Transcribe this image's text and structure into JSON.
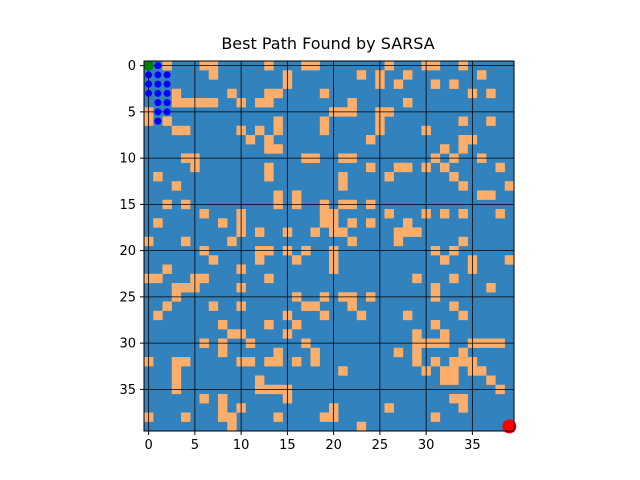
{
  "chart_data": {
    "type": "heatmap",
    "title": "Best Path Found by SARSA",
    "grid_size": 40,
    "xlim": [
      -0.5,
      39.5
    ],
    "ylim": [
      39.5,
      -0.5
    ],
    "xticks": [
      0,
      5,
      10,
      15,
      20,
      25,
      30,
      35
    ],
    "yticks": [
      0,
      5,
      10,
      15,
      20,
      25,
      30,
      35
    ],
    "xtick_labels": [
      "0",
      "5",
      "10",
      "15",
      "20",
      "25",
      "30",
      "35"
    ],
    "ytick_labels": [
      "0",
      "5",
      "10",
      "15",
      "20",
      "25",
      "30",
      "35"
    ],
    "grid": true,
    "grid_spacing": 5,
    "colors": {
      "free": "#3282bd",
      "obstacle": "#fdae6b",
      "path": "#0000ff",
      "start": "#008000",
      "goal": "#ff0000",
      "grid": "#000000"
    },
    "obstacles": [
      [
        0,
        2
      ],
      [
        0,
        6
      ],
      [
        0,
        7
      ],
      [
        0,
        13
      ],
      [
        0,
        17
      ],
      [
        0,
        18
      ],
      [
        0,
        26
      ],
      [
        0,
        30
      ],
      [
        0,
        31
      ],
      [
        0,
        34
      ],
      [
        1,
        7
      ],
      [
        1,
        15
      ],
      [
        1,
        23
      ],
      [
        1,
        25
      ],
      [
        1,
        28
      ],
      [
        1,
        36
      ],
      [
        2,
        15
      ],
      [
        2,
        25
      ],
      [
        2,
        27
      ],
      [
        2,
        31
      ],
      [
        2,
        33
      ],
      [
        3,
        3
      ],
      [
        3,
        9
      ],
      [
        3,
        13
      ],
      [
        3,
        14
      ],
      [
        3,
        19
      ],
      [
        3,
        35
      ],
      [
        3,
        37
      ],
      [
        4,
        3
      ],
      [
        4,
        4
      ],
      [
        4,
        5
      ],
      [
        4,
        6
      ],
      [
        4,
        7
      ],
      [
        4,
        10
      ],
      [
        4,
        12
      ],
      [
        4,
        13
      ],
      [
        4,
        22
      ],
      [
        4,
        28
      ],
      [
        5,
        0
      ],
      [
        5,
        20
      ],
      [
        5,
        21
      ],
      [
        5,
        22
      ],
      [
        5,
        25
      ],
      [
        5,
        26
      ],
      [
        6,
        0
      ],
      [
        6,
        2
      ],
      [
        6,
        14
      ],
      [
        6,
        19
      ],
      [
        6,
        25
      ],
      [
        6,
        34
      ],
      [
        6,
        37
      ],
      [
        7,
        3
      ],
      [
        7,
        4
      ],
      [
        7,
        10
      ],
      [
        7,
        12
      ],
      [
        7,
        14
      ],
      [
        7,
        19
      ],
      [
        7,
        25
      ],
      [
        7,
        30
      ],
      [
        8,
        11
      ],
      [
        8,
        13
      ],
      [
        8,
        24
      ],
      [
        8,
        34
      ],
      [
        8,
        35
      ],
      [
        9,
        13
      ],
      [
        9,
        14
      ],
      [
        9,
        32
      ],
      [
        9,
        34
      ],
      [
        10,
        4
      ],
      [
        10,
        5
      ],
      [
        10,
        17
      ],
      [
        10,
        18
      ],
      [
        10,
        21
      ],
      [
        10,
        22
      ],
      [
        10,
        31
      ],
      [
        10,
        33
      ],
      [
        10,
        36
      ],
      [
        11,
        5
      ],
      [
        11,
        13
      ],
      [
        11,
        24
      ],
      [
        11,
        27
      ],
      [
        11,
        28
      ],
      [
        11,
        30
      ],
      [
        11,
        32
      ],
      [
        11,
        38
      ],
      [
        12,
        1
      ],
      [
        12,
        13
      ],
      [
        12,
        21
      ],
      [
        12,
        26
      ],
      [
        12,
        33
      ],
      [
        13,
        3
      ],
      [
        13,
        21
      ],
      [
        13,
        34
      ],
      [
        13,
        39
      ],
      [
        14,
        14
      ],
      [
        14,
        16
      ],
      [
        14,
        36
      ],
      [
        14,
        37
      ],
      [
        15,
        2
      ],
      [
        15,
        4
      ],
      [
        15,
        14
      ],
      [
        15,
        16
      ],
      [
        15,
        19
      ],
      [
        15,
        21
      ],
      [
        15,
        22
      ],
      [
        15,
        24
      ],
      [
        16,
        6
      ],
      [
        16,
        10
      ],
      [
        16,
        19
      ],
      [
        16,
        20
      ],
      [
        16,
        26
      ],
      [
        16,
        30
      ],
      [
        16,
        32
      ],
      [
        16,
        34
      ],
      [
        16,
        38
      ],
      [
        17,
        1
      ],
      [
        17,
        8
      ],
      [
        17,
        10
      ],
      [
        17,
        19
      ],
      [
        17,
        20
      ],
      [
        17,
        22
      ],
      [
        17,
        24
      ],
      [
        17,
        28
      ],
      [
        18,
        10
      ],
      [
        18,
        12
      ],
      [
        18,
        15
      ],
      [
        18,
        18
      ],
      [
        18,
        20
      ],
      [
        18,
        21
      ],
      [
        18,
        27
      ],
      [
        18,
        28
      ],
      [
        18,
        29
      ],
      [
        19,
        0
      ],
      [
        19,
        4
      ],
      [
        19,
        9
      ],
      [
        19,
        22
      ],
      [
        19,
        27
      ],
      [
        19,
        34
      ],
      [
        20,
        6
      ],
      [
        20,
        12
      ],
      [
        20,
        13
      ],
      [
        20,
        15
      ],
      [
        20,
        17
      ],
      [
        20,
        20
      ],
      [
        20,
        31
      ],
      [
        20,
        33
      ],
      [
        21,
        7
      ],
      [
        21,
        12
      ],
      [
        21,
        16
      ],
      [
        21,
        20
      ],
      [
        21,
        32
      ],
      [
        21,
        35
      ],
      [
        21,
        39
      ],
      [
        22,
        2
      ],
      [
        22,
        10
      ],
      [
        22,
        20
      ],
      [
        22,
        35
      ],
      [
        23,
        0
      ],
      [
        23,
        1
      ],
      [
        23,
        5
      ],
      [
        23,
        6
      ],
      [
        23,
        13
      ],
      [
        23,
        29
      ],
      [
        23,
        33
      ],
      [
        24,
        3
      ],
      [
        24,
        4
      ],
      [
        24,
        5
      ],
      [
        24,
        10
      ],
      [
        24,
        31
      ],
      [
        24,
        37
      ],
      [
        25,
        3
      ],
      [
        25,
        16
      ],
      [
        25,
        19
      ],
      [
        25,
        21
      ],
      [
        25,
        22
      ],
      [
        25,
        24
      ],
      [
        25,
        31
      ],
      [
        26,
        2
      ],
      [
        26,
        7
      ],
      [
        26,
        10
      ],
      [
        26,
        17
      ],
      [
        26,
        18
      ],
      [
        26,
        22
      ],
      [
        26,
        33
      ],
      [
        27,
        1
      ],
      [
        27,
        15
      ],
      [
        27,
        19
      ],
      [
        27,
        23
      ],
      [
        27,
        28
      ],
      [
        27,
        34
      ],
      [
        28,
        8
      ],
      [
        28,
        13
      ],
      [
        28,
        16
      ],
      [
        28,
        31
      ],
      [
        29,
        9
      ],
      [
        29,
        10
      ],
      [
        29,
        15
      ],
      [
        29,
        29
      ],
      [
        29,
        32
      ],
      [
        30,
        6
      ],
      [
        30,
        8
      ],
      [
        30,
        11
      ],
      [
        30,
        17
      ],
      [
        30,
        29
      ],
      [
        30,
        30
      ],
      [
        30,
        31
      ],
      [
        30,
        32
      ],
      [
        30,
        35
      ],
      [
        30,
        36
      ],
      [
        30,
        37
      ],
      [
        30,
        38
      ],
      [
        31,
        8
      ],
      [
        31,
        14
      ],
      [
        31,
        18
      ],
      [
        31,
        27
      ],
      [
        31,
        29
      ],
      [
        31,
        34
      ],
      [
        32,
        0
      ],
      [
        32,
        3
      ],
      [
        32,
        4
      ],
      [
        32,
        10
      ],
      [
        32,
        11
      ],
      [
        32,
        13
      ],
      [
        32,
        14
      ],
      [
        32,
        16
      ],
      [
        32,
        18
      ],
      [
        32,
        29
      ],
      [
        32,
        31
      ],
      [
        32,
        33
      ],
      [
        32,
        34
      ],
      [
        32,
        35
      ],
      [
        33,
        3
      ],
      [
        33,
        21
      ],
      [
        33,
        30
      ],
      [
        33,
        32
      ],
      [
        33,
        33
      ],
      [
        33,
        35
      ],
      [
        33,
        36
      ],
      [
        34,
        3
      ],
      [
        34,
        12
      ],
      [
        34,
        32
      ],
      [
        34,
        33
      ],
      [
        34,
        37
      ],
      [
        35,
        3
      ],
      [
        35,
        12
      ],
      [
        35,
        13
      ],
      [
        35,
        14
      ],
      [
        35,
        15
      ],
      [
        35,
        38
      ],
      [
        36,
        6
      ],
      [
        36,
        8
      ],
      [
        36,
        15
      ],
      [
        36,
        33
      ],
      [
        36,
        34
      ],
      [
        37,
        8
      ],
      [
        37,
        10
      ],
      [
        37,
        20
      ],
      [
        37,
        26
      ],
      [
        37,
        34
      ],
      [
        38,
        0
      ],
      [
        38,
        4
      ],
      [
        38,
        8
      ],
      [
        38,
        9
      ],
      [
        38,
        14
      ],
      [
        38,
        19
      ],
      [
        38,
        20
      ],
      [
        38,
        31
      ],
      [
        39,
        9
      ],
      [
        39,
        23
      ]
    ],
    "path": [
      [
        0,
        0
      ],
      [
        0,
        1
      ],
      [
        1,
        0
      ],
      [
        1,
        1
      ],
      [
        1,
        2
      ],
      [
        2,
        0
      ],
      [
        2,
        1
      ],
      [
        2,
        2
      ],
      [
        3,
        0
      ],
      [
        3,
        1
      ],
      [
        3,
        2
      ],
      [
        4,
        1
      ],
      [
        4,
        2
      ],
      [
        5,
        1
      ],
      [
        5,
        2
      ],
      [
        6,
        1
      ]
    ],
    "start": [
      0,
      0
    ],
    "goal": [
      39,
      39
    ]
  }
}
